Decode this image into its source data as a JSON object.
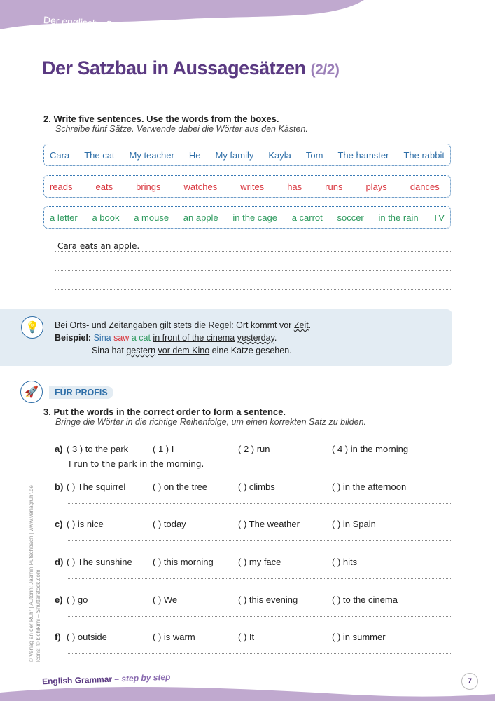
{
  "header": {
    "section": "Der englische Satzbau",
    "title": "Der Satzbau in Aussagesätzen",
    "part": "(2/2)"
  },
  "task2": {
    "number": "2.",
    "instruction": "Write five sentences. Use the words from the boxes.",
    "translation": "Schreibe fünf Sätze. Verwende dabei die Wörter aus den Kästen.",
    "subjects": [
      "Cara",
      "The cat",
      "My teacher",
      "He",
      "My family",
      "Kayla",
      "Tom",
      "The hamster",
      "The rabbit"
    ],
    "verbs": [
      "reads",
      "eats",
      "brings",
      "watches",
      "writes",
      "has",
      "runs",
      "plays",
      "dances"
    ],
    "objects": [
      "a letter",
      "a book",
      "a mouse",
      "an apple",
      "in the cage",
      "a carrot",
      "soccer",
      "in the rain",
      "TV"
    ],
    "answers": [
      "Cara eats an apple.",
      "",
      ""
    ]
  },
  "tip": {
    "rule_prefix": "Bei Orts- und Zeitangaben gilt stets die Regel: ",
    "ort": "Ort",
    "middle": " kommt vor ",
    "zeit": "Zeit",
    "end": ".",
    "example_label": "Beispiel:",
    "ex_subject": "Sina",
    "ex_verb": "saw",
    "ex_object": "a cat",
    "ex_place": "in front of the cinema",
    "ex_time": "yesterday",
    "ex_dot": ".",
    "de_1": "Sina hat ",
    "de_time": "gestern",
    "de_place": "vor dem Kino",
    "de_2": " eine Katze gesehen."
  },
  "task3": {
    "badge": "FÜR PROFIS",
    "number": "3.",
    "instruction": "Put the words in the correct order to form a sentence.",
    "translation": "Bringe die Wörter in die richtige Reihenfolge, um einen korrekten Satz zu bilden.",
    "rows": [
      {
        "label": "a)",
        "cells": [
          "( 3 ) to the park",
          "( 1 ) I",
          "( 2 ) run",
          "( 4 ) in the morning"
        ],
        "answer": "I run to the park in the morning."
      },
      {
        "label": "b)",
        "cells": [
          "(   ) The squirrel",
          "(   ) on the tree",
          "(   ) climbs",
          "(   ) in the afternoon"
        ],
        "answer": ""
      },
      {
        "label": "c)",
        "cells": [
          "(   ) is nice",
          "(   ) today",
          "(   ) The weather",
          "(   ) in Spain"
        ],
        "answer": ""
      },
      {
        "label": "d)",
        "cells": [
          "(   ) The sunshine",
          "(   ) this morning",
          "(   ) my face",
          "(   ) hits"
        ],
        "answer": ""
      },
      {
        "label": "e)",
        "cells": [
          "(   ) go",
          "(   ) We",
          "(   ) this evening",
          "(   ) to the cinema"
        ],
        "answer": ""
      },
      {
        "label": "f)",
        "cells": [
          "(   ) outside",
          "(   ) is warm",
          "(   ) It",
          "(   ) in summer"
        ],
        "answer": ""
      }
    ]
  },
  "footer": {
    "series": "English Grammar",
    "subtitle": "– step by step",
    "page": "7",
    "copyright": "© Verlag an der Ruhr | Autorin: Jasmin Putschbach | www.verlagruhr.de",
    "icons": "Icons: © kichikimi – Shutterstock.com"
  },
  "colors": {
    "purple": "#5b3a82",
    "wave": "#c0a9cf",
    "blue": "#2f6fa8",
    "red": "#d9363e",
    "green": "#2e9a5e",
    "tip_bg": "#e3ecf3"
  }
}
